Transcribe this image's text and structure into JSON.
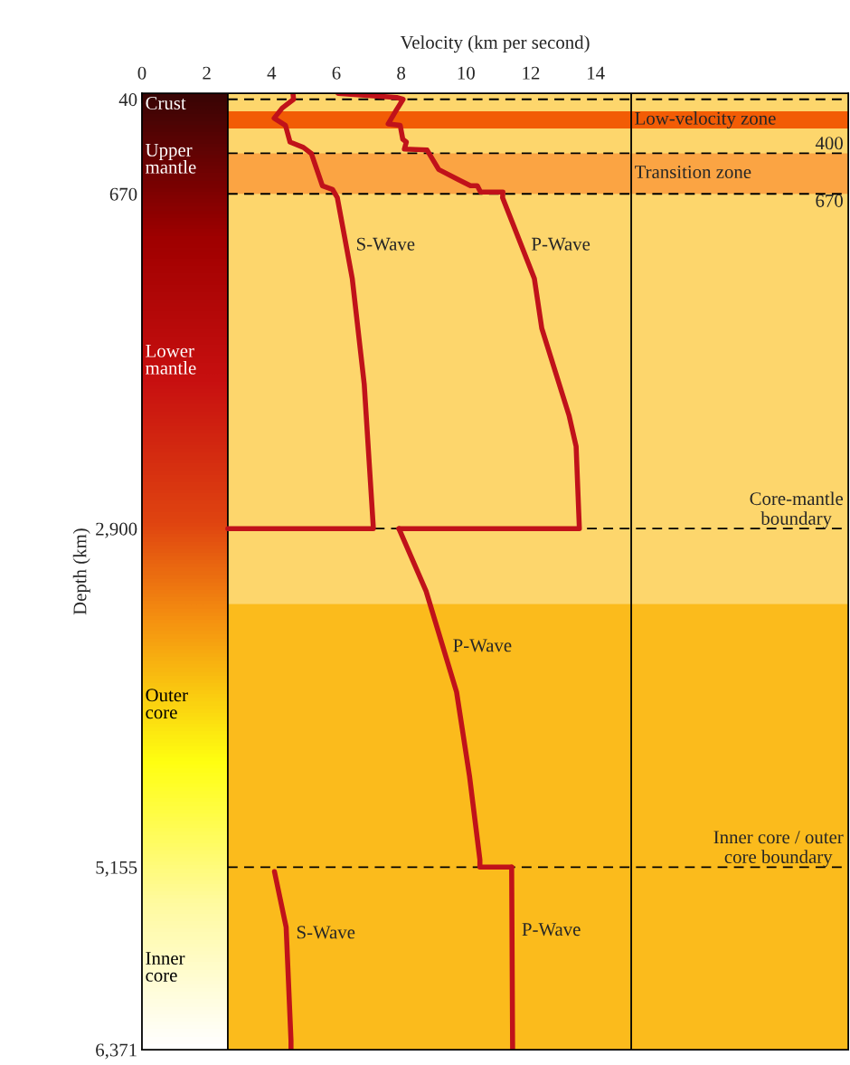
{
  "chart_data": {
    "type": "line",
    "xlabel": "Velocity (km per second)",
    "ylabel": "Depth (km)",
    "xlim": [
      0,
      21.8
    ],
    "xticks": [
      0,
      2,
      4,
      6,
      8,
      10,
      12,
      14
    ],
    "ylim": [
      6371,
      0
    ],
    "yticks": [
      40,
      670,
      {
        "value": 2900,
        "label": "2,900"
      },
      {
        "value": 5155,
        "label": "5,155"
      },
      {
        "value": 6371,
        "label": "6,371"
      }
    ],
    "grid": false,
    "legend": false,
    "line_style": "solid",
    "marker": "none",
    "series": [
      {
        "name": "P-Wave",
        "color": "#c0121a",
        "x": [
          6.05,
          7.86,
          8.06,
          7.86,
          7.6,
          7.97,
          8.05,
          8.16,
          8.1,
          8.8,
          9.16,
          9.75,
          10.14,
          10.35,
          10.45,
          11.14,
          11.13,
          12.11,
          12.34,
          13.18,
          13.4,
          13.5,
          7.93
        ],
        "values": [
          0,
          28,
          40,
          109,
          204,
          214,
          306,
          325,
          372,
          378,
          508,
          574,
          616,
          616,
          658,
          658,
          695,
          1233,
          1566,
          2145,
          2353,
          2900,
          2900
        ]
      },
      {
        "name": "S-Wave",
        "color": "#c0121a",
        "x": [
          4.66,
          4.68,
          4.33,
          4.08,
          4.43,
          4.57,
          4.98,
          5.23,
          5.57,
          5.88,
          6.03,
          6.49,
          6.86,
          7.14,
          7.14,
          2.65
        ],
        "values": [
          0,
          40,
          98,
          166,
          214,
          325,
          360,
          402,
          616,
          640,
          695,
          1233,
          1937,
          2890,
          2900,
          2900
        ]
      },
      {
        "name": "P-Wave",
        "color": "#c0121a",
        "x": [
          7.93,
          8.77,
          9.71,
          10.11,
          10.43,
          10.43,
          11.41
        ],
        "values": [
          2900,
          3317,
          3988,
          4550,
          5106,
          5155,
          5155
        ]
      },
      {
        "name": "P-Wave",
        "color": "#c0121a",
        "x": [
          11.41,
          11.44
        ],
        "values": [
          5155,
          6371
        ]
      },
      {
        "name": "S-Wave",
        "color": "#c0121a",
        "x": [
          4.09,
          4.45,
          4.6,
          4.6
        ],
        "values": [
          5185,
          5555,
          6311,
          6371
        ]
      }
    ],
    "bands": [
      {
        "axis": "x",
        "from": 0,
        "to": 2.65,
        "color": "#c81010"
      },
      {
        "axis": "y",
        "from": 0,
        "to": 3400,
        "color": "#fdd66c"
      },
      {
        "axis": "y",
        "from": 3400,
        "to": 6371,
        "color": "#fbbb1c"
      },
      {
        "axis": "y",
        "from": 120,
        "to": 235,
        "color": "#f25c05",
        "label": "Low-velocity zone"
      },
      {
        "axis": "y",
        "from": 400,
        "to": 670,
        "color": "#fba443",
        "label": "Transition zone"
      }
    ],
    "ref_lines": [
      {
        "axis": "x",
        "value": 2.65,
        "color": "#000000",
        "line_style": "solid"
      },
      {
        "axis": "x",
        "value": 15.1,
        "color": "#000000",
        "line_style": "solid"
      },
      {
        "axis": "y",
        "value": 40,
        "color": "#000000",
        "line_style": "dashed"
      },
      {
        "axis": "y",
        "value": 400,
        "label": "400",
        "color": "#000000",
        "line_style": "dashed"
      },
      {
        "axis": "y",
        "value": 670,
        "label": "670",
        "color": "#000000",
        "line_style": "dashed"
      },
      {
        "axis": "y",
        "value": 2900,
        "label": "Core-mantle\nboundary",
        "color": "#000000",
        "line_style": "dashed"
      },
      {
        "axis": "y",
        "value": 5155,
        "label": "Inner core / outer\ncore boundary",
        "color": "#000000",
        "line_style": "dashed"
      }
    ],
    "annotations": [
      "Crust",
      "Upper\nmantle",
      "Lower\nmantle",
      "Outer\ncore",
      "Inner\ncore"
    ]
  }
}
